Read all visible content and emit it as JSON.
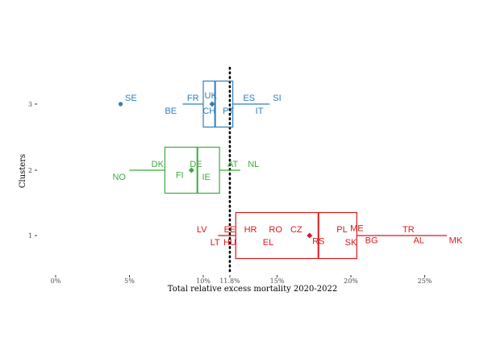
{
  "chart_data": {
    "type": "boxplot",
    "xlabel": "Total relative excess mortality 2020-2022",
    "ylabel": "Clusters",
    "xlim": [
      -0.3,
      28
    ],
    "x_ticks": [
      {
        "value": 0,
        "label": "0%"
      },
      {
        "value": 5,
        "label": "5%"
      },
      {
        "value": 10,
        "label": "10%"
      },
      {
        "value": 11.8,
        "label": "11.8%"
      },
      {
        "value": 15,
        "label": "15%"
      },
      {
        "value": 20,
        "label": "20%"
      },
      {
        "value": 25,
        "label": "25%"
      }
    ],
    "y_ticks": [
      "1",
      "2",
      "3"
    ],
    "reference_line": 11.8,
    "clusters": [
      {
        "cluster": "3",
        "color": "#2E7EBF",
        "whisker_low": 8.6,
        "q1": 10.0,
        "median": 10.8,
        "q3": 12.0,
        "whisker_high": 14.5,
        "mean": 10.6,
        "outliers": [
          4.4
        ],
        "labels": [
          {
            "text": "SE",
            "x": 5.1,
            "dy": -1
          },
          {
            "text": "BE",
            "x": 7.8,
            "dy": 1
          },
          {
            "text": "FR",
            "x": 9.3,
            "dy": -1
          },
          {
            "text": "UK",
            "x": 10.5,
            "dy": -1.4
          },
          {
            "text": "CH",
            "x": 10.4,
            "dy": 1
          },
          {
            "text": "PT",
            "x": 11.7,
            "dy": 1
          },
          {
            "text": "ES",
            "x": 13.1,
            "dy": -1
          },
          {
            "text": "IT",
            "x": 13.8,
            "dy": 1
          },
          {
            "text": "SI",
            "x": 15.0,
            "dy": -1
          }
        ]
      },
      {
        "cluster": "2",
        "color": "#3CAA3C",
        "whisker_low": 5.0,
        "q1": 7.4,
        "median": 9.6,
        "q3": 11.1,
        "whisker_high": 12.5,
        "mean": 9.2,
        "outliers": [],
        "labels": [
          {
            "text": "NO",
            "x": 4.3,
            "dy": 1
          },
          {
            "text": "DK",
            "x": 6.9,
            "dy": -1
          },
          {
            "text": "FI",
            "x": 8.4,
            "dy": 0.7
          },
          {
            "text": "DE",
            "x": 9.5,
            "dy": -1
          },
          {
            "text": "IE",
            "x": 10.2,
            "dy": 1
          },
          {
            "text": "AT",
            "x": 12.0,
            "dy": -1
          },
          {
            "text": "NL",
            "x": 13.4,
            "dy": -1
          }
        ]
      },
      {
        "cluster": "1",
        "color": "#D7191C",
        "whisker_low": 11.0,
        "q1": 12.2,
        "median": 17.8,
        "q3": 20.4,
        "whisker_high": 26.5,
        "mean": 17.2,
        "outliers": [],
        "labels": [
          {
            "text": "LV",
            "x": 9.9,
            "dy": -1
          },
          {
            "text": "LT",
            "x": 10.8,
            "dy": 1
          },
          {
            "text": "EE",
            "x": 11.8,
            "dy": -1
          },
          {
            "text": "HU",
            "x": 11.8,
            "dy": 1
          },
          {
            "text": "HR",
            "x": 13.2,
            "dy": -1
          },
          {
            "text": "EL",
            "x": 14.4,
            "dy": 1
          },
          {
            "text": "RO",
            "x": 14.9,
            "dy": -1
          },
          {
            "text": "CZ",
            "x": 16.3,
            "dy": -1
          },
          {
            "text": "RS",
            "x": 17.8,
            "dy": 0.8
          },
          {
            "text": "PL",
            "x": 19.4,
            "dy": -1
          },
          {
            "text": "ME",
            "x": 20.4,
            "dy": -1.2
          },
          {
            "text": "SK",
            "x": 20.0,
            "dy": 1
          },
          {
            "text": "BG",
            "x": 21.4,
            "dy": 0.7
          },
          {
            "text": "TR",
            "x": 23.9,
            "dy": -1
          },
          {
            "text": "AL",
            "x": 24.6,
            "dy": 0.7
          },
          {
            "text": "MK",
            "x": 27.1,
            "dy": 0.7
          }
        ]
      }
    ]
  }
}
